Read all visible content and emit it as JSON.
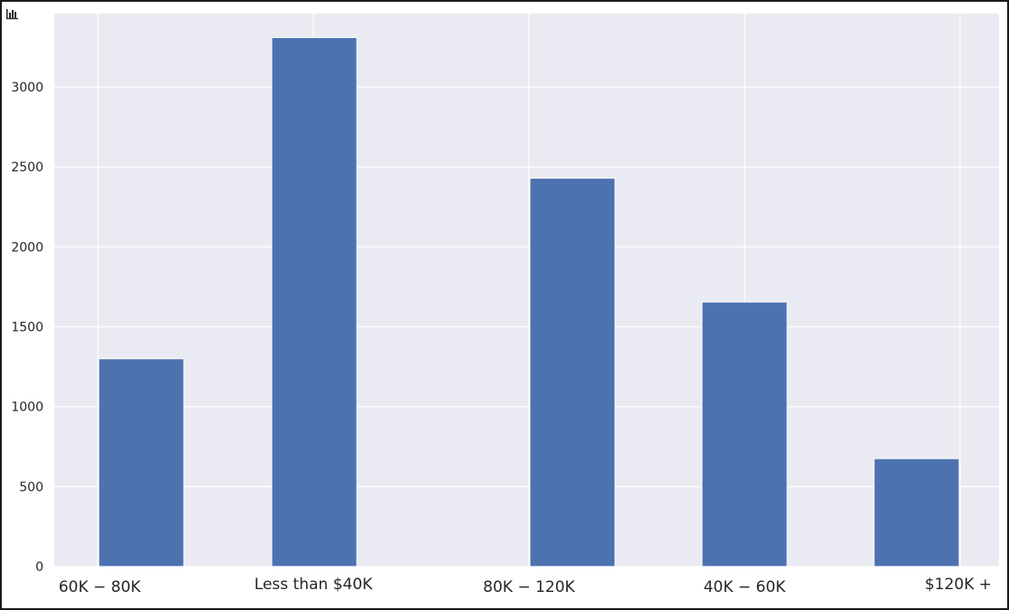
{
  "chart_data": {
    "type": "bar",
    "title": "",
    "xlabel": "",
    "ylabel": "",
    "categories": [
      "60K − 80K",
      "Less than $40K",
      "80K − 120K",
      "40K − 60K",
      "$120K +"
    ],
    "values": [
      1300,
      3310,
      2430,
      1655,
      675
    ],
    "ylim": [
      0,
      3460
    ],
    "yticks": [
      0,
      500,
      1000,
      1500,
      2000,
      2500,
      3000
    ],
    "bar_color": "#4c72b0",
    "plot_background": "#eaeaf2",
    "grid": true,
    "legend": "none"
  }
}
